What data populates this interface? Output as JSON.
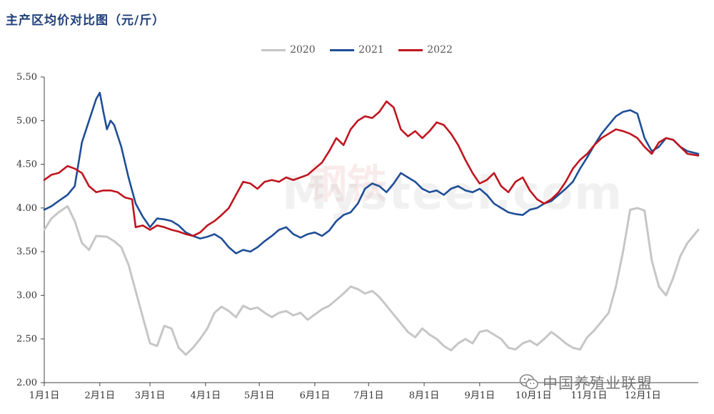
{
  "title": "主产区均价对比图（元/斤）",
  "brand": "中国养殖业联盟",
  "watermark": "Mysteel.com",
  "watermark_cn": "钢铁",
  "colors": {
    "2020": "#c6c6c6",
    "2021": "#1f4e96",
    "2022": "#c0141e",
    "title": "#1f3f7a"
  },
  "chart_data": {
    "type": "line",
    "title": "主产区均价对比图（元/斤）",
    "ylim": [
      2.0,
      5.5
    ],
    "yticks": [
      "2.00",
      "2.50",
      "3.00",
      "3.50",
      "4.00",
      "4.50",
      "5.00",
      "5.50"
    ],
    "xticks": [
      "1月1日",
      "2月1日",
      "3月1日",
      "4月1日",
      "5月1日",
      "6月1日",
      "7月1日",
      "8月1日",
      "9月1日",
      "10月1日",
      "11月1日",
      "12月1日"
    ],
    "xlim": [
      1,
      366
    ],
    "legend_position": "top-center",
    "grid": false,
    "series": [
      {
        "name": "2020",
        "points": [
          [
            1,
            3.75
          ],
          [
            5,
            3.88
          ],
          [
            9,
            3.95
          ],
          [
            14,
            4.02
          ],
          [
            18,
            3.85
          ],
          [
            22,
            3.6
          ],
          [
            26,
            3.52
          ],
          [
            30,
            3.68
          ],
          [
            36,
            3.67
          ],
          [
            40,
            3.62
          ],
          [
            44,
            3.55
          ],
          [
            48,
            3.35
          ],
          [
            52,
            3.05
          ],
          [
            56,
            2.75
          ],
          [
            60,
            2.45
          ],
          [
            64,
            2.42
          ],
          [
            68,
            2.65
          ],
          [
            72,
            2.62
          ],
          [
            76,
            2.4
          ],
          [
            80,
            2.32
          ],
          [
            84,
            2.4
          ],
          [
            88,
            2.5
          ],
          [
            92,
            2.62
          ],
          [
            96,
            2.8
          ],
          [
            100,
            2.87
          ],
          [
            104,
            2.82
          ],
          [
            108,
            2.75
          ],
          [
            112,
            2.88
          ],
          [
            116,
            2.84
          ],
          [
            120,
            2.86
          ],
          [
            124,
            2.8
          ],
          [
            128,
            2.75
          ],
          [
            132,
            2.8
          ],
          [
            136,
            2.82
          ],
          [
            140,
            2.77
          ],
          [
            144,
            2.8
          ],
          [
            148,
            2.72
          ],
          [
            152,
            2.78
          ],
          [
            156,
            2.84
          ],
          [
            160,
            2.88
          ],
          [
            164,
            2.95
          ],
          [
            168,
            3.02
          ],
          [
            172,
            3.1
          ],
          [
            176,
            3.07
          ],
          [
            180,
            3.02
          ],
          [
            184,
            3.05
          ],
          [
            188,
            2.98
          ],
          [
            192,
            2.88
          ],
          [
            196,
            2.78
          ],
          [
            200,
            2.68
          ],
          [
            204,
            2.58
          ],
          [
            208,
            2.52
          ],
          [
            212,
            2.62
          ],
          [
            216,
            2.55
          ],
          [
            220,
            2.5
          ],
          [
            224,
            2.42
          ],
          [
            228,
            2.37
          ],
          [
            232,
            2.45
          ],
          [
            236,
            2.5
          ],
          [
            240,
            2.45
          ],
          [
            244,
            2.58
          ],
          [
            248,
            2.6
          ],
          [
            252,
            2.55
          ],
          [
            256,
            2.5
          ],
          [
            260,
            2.4
          ],
          [
            264,
            2.38
          ],
          [
            268,
            2.45
          ],
          [
            272,
            2.48
          ],
          [
            276,
            2.43
          ],
          [
            280,
            2.5
          ],
          [
            284,
            2.58
          ],
          [
            288,
            2.52
          ],
          [
            292,
            2.45
          ],
          [
            296,
            2.4
          ],
          [
            300,
            2.38
          ],
          [
            304,
            2.52
          ],
          [
            308,
            2.6
          ],
          [
            312,
            2.7
          ],
          [
            316,
            2.8
          ],
          [
            320,
            3.1
          ],
          [
            324,
            3.5
          ],
          [
            328,
            3.98
          ],
          [
            332,
            4.0
          ],
          [
            336,
            3.97
          ],
          [
            340,
            3.4
          ],
          [
            344,
            3.1
          ],
          [
            348,
            3.0
          ],
          [
            352,
            3.2
          ],
          [
            356,
            3.45
          ],
          [
            360,
            3.6
          ],
          [
            366,
            3.75
          ]
        ]
      }
    ]
  }
}
